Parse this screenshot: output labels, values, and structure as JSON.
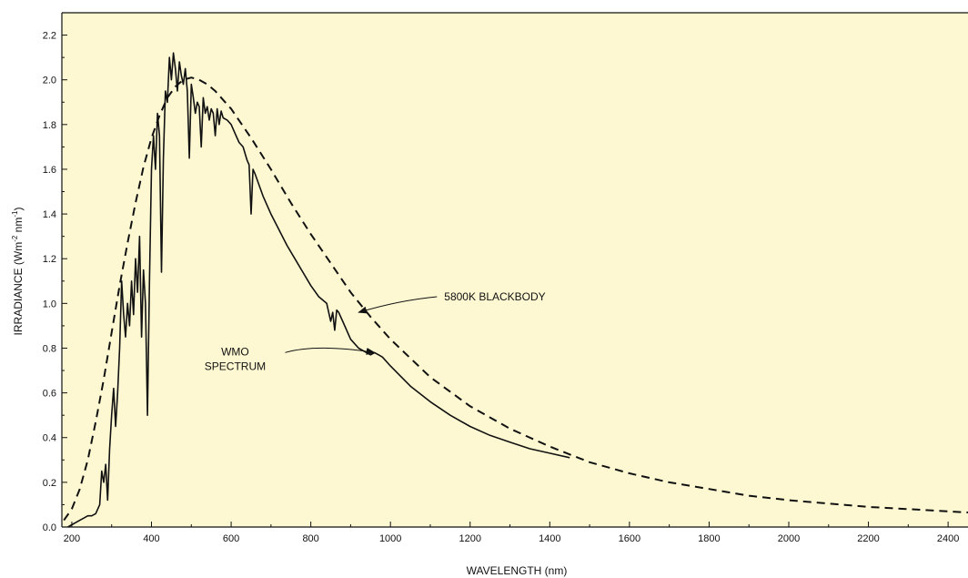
{
  "chart_data": {
    "type": "line",
    "title": "",
    "xlabel": "WAVELENGTH (nm)",
    "ylabel_main": "IRRADIANCE (Wm",
    "ylabel_sup1": "-2",
    "ylabel_mid": " nm",
    "ylabel_sup2": "-1",
    "ylabel_end": ")",
    "xlim": [
      175,
      2450
    ],
    "ylim": [
      0,
      2.3
    ],
    "x_ticks": [
      200,
      400,
      600,
      800,
      1000,
      1200,
      1400,
      1600,
      1800,
      2000,
      2200,
      2400
    ],
    "x_minor_ticks": [
      300,
      500,
      700,
      900,
      1100,
      1300,
      1500,
      1700,
      1900,
      2100,
      2300
    ],
    "y_ticks": [
      0.0,
      0.2,
      0.4,
      0.6,
      0.8,
      1.0,
      1.2,
      1.4,
      1.6,
      1.8,
      2.0,
      2.2
    ],
    "y_tick_labels": [
      "0.0",
      "0.2",
      "0.4",
      "0.6",
      "0.8",
      "1.0",
      "1.2",
      "1.4",
      "1.6",
      "1.8",
      "2.0",
      "2.2"
    ],
    "background_color": "#fdf8d2",
    "line_color": "#111111",
    "grid": false,
    "series": [
      {
        "name": "5800K BLACKBODY",
        "style": "dashed",
        "x": [
          180,
          200,
          220,
          240,
          260,
          280,
          300,
          320,
          340,
          360,
          380,
          400,
          420,
          440,
          460,
          480,
          500,
          520,
          540,
          560,
          580,
          600,
          650,
          700,
          750,
          800,
          850,
          900,
          950,
          1000,
          1100,
          1200,
          1300,
          1400,
          1500,
          1600,
          1700,
          1800,
          1900,
          2000,
          2100,
          2200,
          2300,
          2400,
          2450
        ],
        "y": [
          0.03,
          0.08,
          0.17,
          0.3,
          0.47,
          0.66,
          0.87,
          1.08,
          1.27,
          1.45,
          1.61,
          1.74,
          1.84,
          1.92,
          1.97,
          2.0,
          2.01,
          2.0,
          1.98,
          1.95,
          1.91,
          1.87,
          1.74,
          1.6,
          1.45,
          1.31,
          1.18,
          1.05,
          0.94,
          0.84,
          0.67,
          0.54,
          0.44,
          0.36,
          0.29,
          0.24,
          0.2,
          0.17,
          0.14,
          0.12,
          0.105,
          0.09,
          0.08,
          0.07,
          0.065
        ]
      },
      {
        "name": "WMO SPECTRUM",
        "style": "solid",
        "x": [
          190,
          200,
          210,
          220,
          230,
          240,
          250,
          260,
          270,
          275,
          280,
          285,
          290,
          295,
          300,
          305,
          310,
          315,
          320,
          325,
          330,
          335,
          340,
          345,
          350,
          355,
          360,
          365,
          370,
          375,
          380,
          385,
          390,
          395,
          400,
          405,
          410,
          415,
          420,
          425,
          430,
          435,
          440,
          445,
          450,
          455,
          460,
          465,
          470,
          475,
          480,
          485,
          490,
          495,
          500,
          505,
          510,
          515,
          520,
          525,
          530,
          535,
          540,
          545,
          550,
          555,
          560,
          565,
          570,
          575,
          580,
          590,
          600,
          610,
          620,
          630,
          640,
          645,
          650,
          655,
          660,
          680,
          700,
          720,
          740,
          760,
          780,
          800,
          820,
          840,
          850,
          855,
          860,
          865,
          870,
          880,
          900,
          920,
          940,
          950,
          960,
          970,
          980,
          1000,
          1050,
          1100,
          1150,
          1200,
          1250,
          1300,
          1350,
          1400,
          1450
        ],
        "y": [
          0.0,
          0.01,
          0.02,
          0.03,
          0.04,
          0.05,
          0.05,
          0.06,
          0.1,
          0.25,
          0.2,
          0.28,
          0.12,
          0.35,
          0.5,
          0.62,
          0.45,
          0.6,
          0.8,
          1.1,
          0.95,
          0.85,
          1.0,
          0.9,
          1.1,
          0.95,
          1.2,
          1.05,
          1.3,
          0.85,
          1.15,
          1.0,
          0.5,
          1.1,
          1.6,
          1.75,
          1.6,
          1.85,
          1.75,
          1.14,
          1.65,
          1.95,
          1.9,
          2.1,
          2.0,
          2.12,
          2.05,
          1.95,
          2.08,
          2.02,
          1.98,
          2.05,
          1.95,
          1.65,
          1.98,
          1.92,
          1.85,
          1.9,
          1.88,
          1.7,
          1.92,
          1.85,
          1.88,
          1.82,
          1.87,
          1.85,
          1.75,
          1.87,
          1.8,
          1.86,
          1.83,
          1.82,
          1.8,
          1.76,
          1.72,
          1.7,
          1.64,
          1.62,
          1.4,
          1.6,
          1.58,
          1.48,
          1.4,
          1.33,
          1.26,
          1.2,
          1.14,
          1.08,
          1.03,
          1.0,
          0.92,
          0.96,
          0.88,
          0.97,
          0.96,
          0.92,
          0.84,
          0.8,
          0.78,
          0.77,
          0.78,
          0.77,
          0.76,
          0.72,
          0.63,
          0.56,
          0.5,
          0.45,
          0.41,
          0.38,
          0.35,
          0.33,
          0.31
        ]
      }
    ],
    "annotations": [
      {
        "id": "blackbody",
        "text": "5800K BLACKBODY",
        "x": 1135,
        "y": 1.03,
        "arrow_to": [
          920,
          0.96
        ]
      },
      {
        "id": "wmo",
        "lines": [
          "WMO",
          "SPECTRUM"
        ],
        "x": 610,
        "y": 0.76,
        "arrow_to": [
          960,
          0.78
        ]
      }
    ]
  }
}
